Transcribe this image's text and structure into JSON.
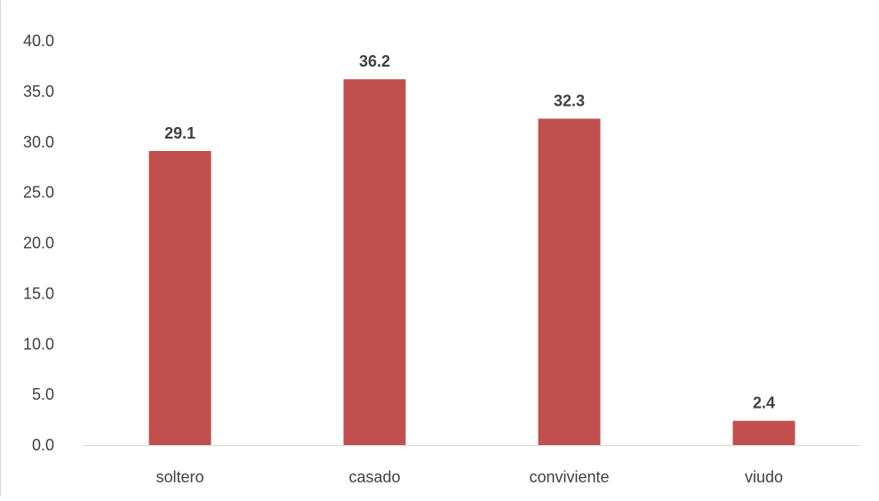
{
  "chart_data": {
    "type": "bar",
    "categories": [
      "soltero",
      "casado",
      "conviviente",
      "viudo"
    ],
    "values": [
      29.1,
      36.2,
      32.3,
      2.4
    ],
    "data_labels": [
      "29.1",
      "36.2",
      "32.3",
      "2.4"
    ],
    "y_ticks": [
      "0.0",
      "5.0",
      "10.0",
      "15.0",
      "20.0",
      "25.0",
      "30.0",
      "35.0",
      "40.0"
    ],
    "ylim": [
      0,
      40
    ],
    "grid": false,
    "legend": "none",
    "bar_color": "#c0504d",
    "axis_color": "#d9d9d9",
    "text_color": "#404040"
  }
}
